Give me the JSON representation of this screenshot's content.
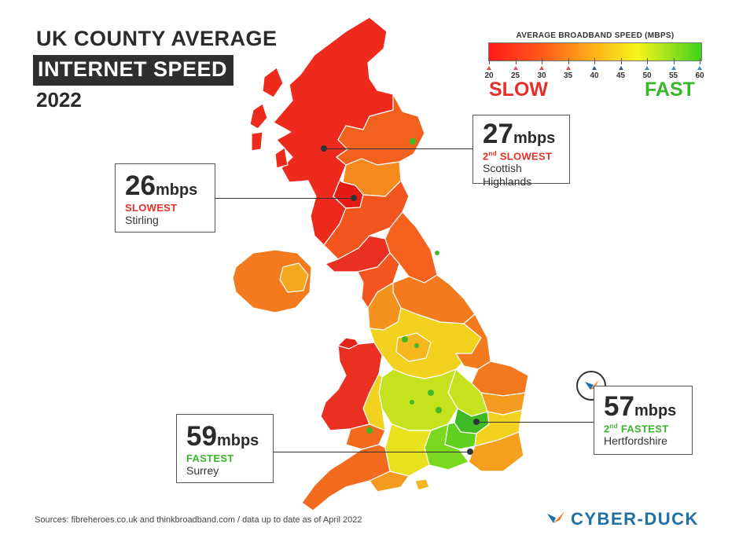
{
  "header": {
    "line1": "UK COUNTY AVERAGE",
    "line2": "INTERNET SPEED",
    "line3": "2022"
  },
  "legend": {
    "title": "AVERAGE BROADBAND SPEED (MBPS)",
    "ticks": [
      "20",
      "25",
      "30",
      "35",
      "40",
      "45",
      "50",
      "55",
      "60"
    ],
    "slow_label": "SLOW",
    "fast_label": "FAST",
    "colors": {
      "slow": "#e5302a",
      "fast": "#3bb52c"
    }
  },
  "callouts": {
    "slowest": {
      "value": "26",
      "unit": "mbps",
      "rank": "SLOWEST",
      "place": "Stirling"
    },
    "second_slowest": {
      "value": "27",
      "unit": "mbps",
      "rank_ord": "nd",
      "rank_num": "2",
      "rank_text": "SLOWEST",
      "place_line1": "Scottish",
      "place_line2": "Highlands"
    },
    "fastest": {
      "value": "59",
      "unit": "mbps",
      "rank": "FASTEST",
      "place": "Surrey"
    },
    "second_fastest": {
      "value": "57",
      "unit": "mbps",
      "rank_ord": "nd",
      "rank_num": "2",
      "rank_text": "FASTEST",
      "place": "Hertfordshire"
    }
  },
  "footer": {
    "sources": "Sources: fibreheroes.co.uk and thinkbroadband.com / data up to date as of April 2022",
    "brand": "CYBER-DUCK"
  },
  "map": {
    "region_colors": {
      "scotland": "#ee2a1c",
      "scotland_east": "#f2611e",
      "northern_ireland": "#f47a1e",
      "north_england": "#f4621e",
      "midlands": "#f2d21e",
      "wales": "#ea3020",
      "south_west": "#f26a1e",
      "south_east": "#d4e21e",
      "london": "#5fd01e",
      "east": "#f49a1e"
    }
  }
}
